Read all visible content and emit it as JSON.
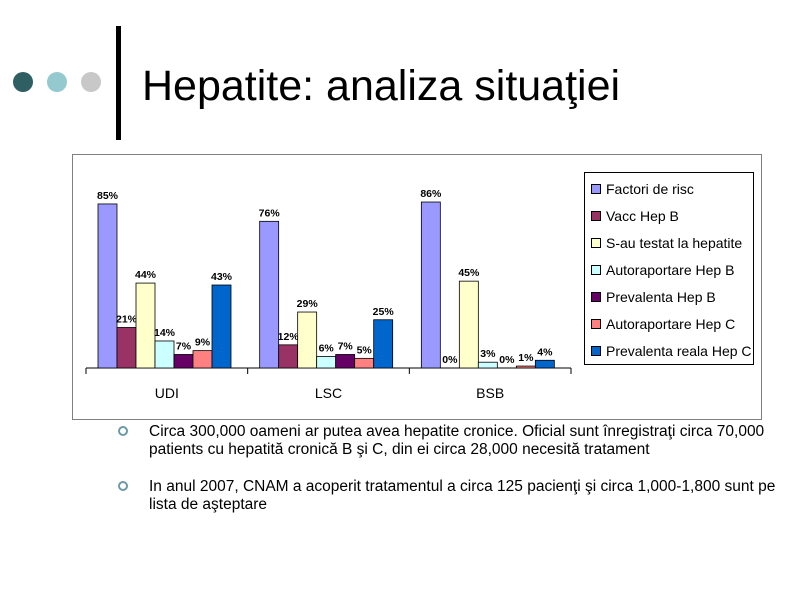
{
  "slide": {
    "title": "Hepatite: analiza situaţiei",
    "decor_colors": [
      "#2f5f63",
      "#93c9cf",
      "#c8c8c8"
    ]
  },
  "chart_data": {
    "type": "bar",
    "categories": [
      "UDI",
      "LSC",
      "BSB"
    ],
    "ylim": [
      0,
      100
    ],
    "legend_position": "right",
    "grid": false,
    "series": [
      {
        "name": "Factori de risc",
        "color": "#9999ff",
        "values": [
          85,
          76,
          86
        ],
        "labels": [
          "85%",
          "76%",
          "86%"
        ]
      },
      {
        "name": "Vacc Hep B",
        "color": "#993366",
        "values": [
          21,
          12,
          0
        ],
        "labels": [
          "21%",
          "12%",
          "0%"
        ]
      },
      {
        "name": "S-au testat la hepatite",
        "color": "#ffffcc",
        "values": [
          44,
          29,
          45
        ],
        "labels": [
          "44%",
          "29%",
          "45%"
        ]
      },
      {
        "name": "Autoraportare Hep B",
        "color": "#ccffff",
        "values": [
          14,
          6,
          3
        ],
        "labels": [
          "14%",
          "6%",
          "3%"
        ]
      },
      {
        "name": "Prevalenta Hep B",
        "color": "#660066",
        "values": [
          7,
          7,
          0
        ],
        "labels": [
          "7%",
          "7%",
          "0%"
        ]
      },
      {
        "name": "Autoraportare Hep C",
        "color": "#ff8080",
        "values": [
          9,
          5,
          1
        ],
        "labels": [
          "9%",
          "5%",
          "1%"
        ]
      },
      {
        "name": "Prevalenta reala Hep C",
        "color": "#0066cc",
        "values": [
          43,
          25,
          4
        ],
        "labels": [
          "43%",
          "25%",
          "4%"
        ]
      }
    ]
  },
  "bullets": [
    "Circa 300,000 oameni ar putea avea hepatite cronice. Oficial sunt înregistraţi circa  70,000 patients cu hepatită cronică B şi C, din ei  circa 28,000 necesită tratament",
    "In anul 2007,  CNAM a acoperit tratamentul a circa 125 pacienţi şi circa 1,000-1,800 sunt pe lista de aşteptare"
  ]
}
